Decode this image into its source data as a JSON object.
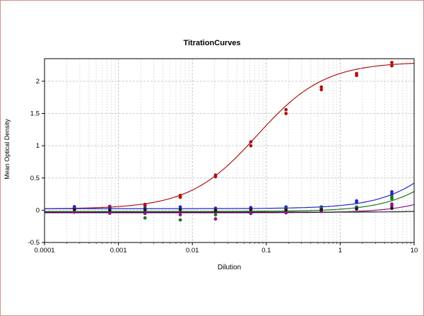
{
  "window": {
    "title": "TitrationCurves"
  },
  "chart_data": {
    "type": "scatter",
    "title": "TitrationCurves",
    "xlabel": "Dilution",
    "ylabel": "Mean Optical Density",
    "x_scale": "log",
    "xlim": [
      0.0001,
      10
    ],
    "ylim": [
      -0.5,
      2.35
    ],
    "x_ticks": [
      {
        "v": 0.0001,
        "label": "0.0001"
      },
      {
        "v": 0.001,
        "label": "0.001"
      },
      {
        "v": 0.01,
        "label": "0.01"
      },
      {
        "v": 0.1,
        "label": "0.1"
      },
      {
        "v": 1,
        "label": "1"
      },
      {
        "v": 10,
        "label": "10"
      }
    ],
    "y_ticks": [
      {
        "v": -0.5,
        "label": "-0.5"
      },
      {
        "v": 0,
        "label": "0"
      },
      {
        "v": 0.5,
        "label": "0.5"
      },
      {
        "v": 1,
        "label": "1"
      },
      {
        "v": 1.5,
        "label": "1.5"
      },
      {
        "v": 2,
        "label": "2"
      }
    ],
    "grid": {
      "minor_color": "#dedede",
      "major_color": "#c6c6c6",
      "h_color": "#cccccc"
    },
    "series": [
      {
        "name": "curve-red",
        "color": "#b01212",
        "fit": {
          "bottom": 0.02,
          "top": 2.3,
          "ec50": 0.075,
          "hill": 0.95
        },
        "points": [
          [
            0.000254,
            0.02
          ],
          [
            0.000254,
            0.035
          ],
          [
            0.000762,
            0.045
          ],
          [
            0.000762,
            0.06
          ],
          [
            0.00229,
            0.07
          ],
          [
            0.00229,
            0.09
          ],
          [
            0.00686,
            0.2
          ],
          [
            0.00686,
            0.23
          ],
          [
            0.0206,
            0.52
          ],
          [
            0.0206,
            0.545
          ],
          [
            0.0617,
            1.0
          ],
          [
            0.0617,
            1.06
          ],
          [
            0.185,
            1.5
          ],
          [
            0.185,
            1.56
          ],
          [
            0.556,
            1.87
          ],
          [
            0.556,
            1.91
          ],
          [
            1.667,
            2.09
          ],
          [
            1.667,
            2.12
          ],
          [
            5,
            2.24
          ],
          [
            5,
            2.29
          ]
        ]
      },
      {
        "name": "curve-blue",
        "color": "#2525c8",
        "fit": {
          "bottom": 0.025,
          "top": 2.0,
          "ec50": 40,
          "hill": 1
        },
        "points": [
          [
            0.000254,
            0.04
          ],
          [
            0.000254,
            0.055
          ],
          [
            0.000762,
            0.03
          ],
          [
            0.00229,
            0.03
          ],
          [
            0.00686,
            0.05
          ],
          [
            0.0206,
            0.03
          ],
          [
            0.0617,
            0.04
          ],
          [
            0.185,
            0.05
          ],
          [
            0.556,
            0.05
          ],
          [
            1.667,
            0.12
          ],
          [
            1.667,
            0.145
          ],
          [
            5,
            0.25
          ],
          [
            5,
            0.285
          ]
        ]
      },
      {
        "name": "curve-green",
        "color": "#1d7a1d",
        "fit": {
          "bottom": -0.02,
          "top": 2.0,
          "ec50": 55,
          "hill": 1
        },
        "points": [
          [
            0.000254,
            0.02
          ],
          [
            0.000762,
            -0.03
          ],
          [
            0.00229,
            -0.12
          ],
          [
            0.00686,
            -0.15
          ],
          [
            0.0206,
            -0.07
          ],
          [
            0.0617,
            0.01
          ],
          [
            0.185,
            0.02
          ],
          [
            0.556,
            0.03
          ],
          [
            1.667,
            0.05
          ],
          [
            5,
            0.18
          ],
          [
            5,
            0.21
          ]
        ]
      },
      {
        "name": "curve-purple",
        "color": "#951095",
        "fit": {
          "bottom": -0.04,
          "top": 2.0,
          "ec50": 150,
          "hill": 1
        },
        "points": [
          [
            0.000254,
            -0.03
          ],
          [
            0.000762,
            -0.045
          ],
          [
            0.00229,
            -0.05
          ],
          [
            0.00686,
            -0.07
          ],
          [
            0.0206,
            -0.135
          ],
          [
            0.0617,
            -0.05
          ],
          [
            0.185,
            -0.04
          ],
          [
            0.556,
            -0.02
          ],
          [
            1.667,
            0.03
          ],
          [
            5,
            0.07
          ],
          [
            5,
            0.095
          ]
        ]
      },
      {
        "name": "curve-black",
        "color": "#1a1a1a",
        "fit": {
          "bottom": -0.03,
          "top": 2.0,
          "ec50": 2000,
          "hill": 1
        },
        "points": [
          [
            0.000254,
            0.01
          ],
          [
            0.000762,
            0.0
          ],
          [
            0.00229,
            0.005
          ],
          [
            0.00686,
            0.01
          ],
          [
            0.0206,
            0.0
          ],
          [
            0.0617,
            0.01
          ],
          [
            0.185,
            0.005
          ],
          [
            0.556,
            0.01
          ],
          [
            1.667,
            0.02
          ],
          [
            5,
            0.03
          ]
        ]
      }
    ]
  }
}
